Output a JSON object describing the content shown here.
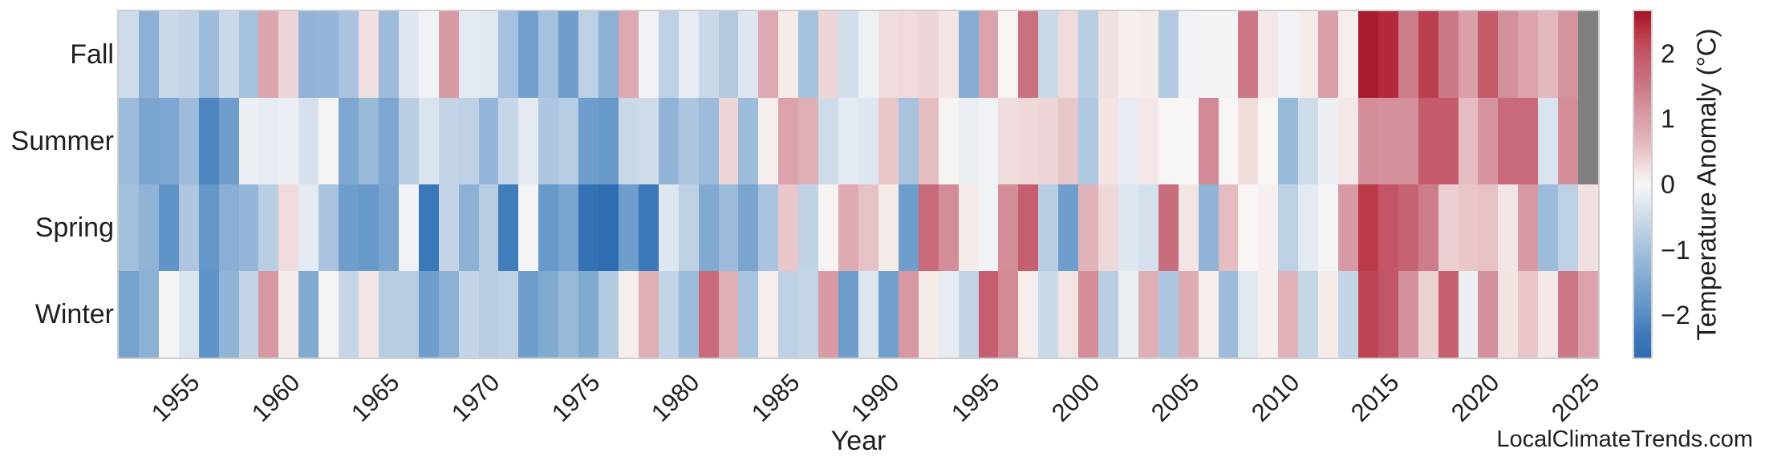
{
  "site_credit": "LocalClimateTrends.com",
  "colors": {
    "background": "#ffffff",
    "frame": "#cfcfcf",
    "text": "#1f1f1f",
    "missing_cell": "#808080"
  },
  "chart_data": {
    "type": "heatmap",
    "title": "",
    "xlabel": "Year",
    "year_start": 1952,
    "year_end": 2025,
    "xticks": [
      1955,
      1960,
      1965,
      1970,
      1975,
      1980,
      1985,
      1990,
      1995,
      2000,
      2005,
      2010,
      2015,
      2020,
      2025
    ],
    "row_order_top_to_bottom": [
      "Fall",
      "Summer",
      "Spring",
      "Winter"
    ],
    "legend_position": "right",
    "grid": false,
    "colorbar": {
      "label": "Temperature Anomaly (°C)",
      "ticks": [
        2,
        1,
        0,
        -1,
        -2
      ],
      "vmin": -2.65,
      "vmax": 2.65
    },
    "colormap_stops": [
      [
        -2.65,
        "#2e6db1"
      ],
      [
        -2.2,
        "#427dbb"
      ],
      [
        -1.9,
        "#6094c8"
      ],
      [
        -1.5,
        "#7da7d0"
      ],
      [
        -1.1,
        "#9dbbda"
      ],
      [
        -0.7,
        "#bed1e4"
      ],
      [
        -0.35,
        "#dae4ee"
      ],
      [
        -0.1,
        "#f0f2f5"
      ],
      [
        0.0,
        "#f7f6f5"
      ],
      [
        0.12,
        "#f6eeec"
      ],
      [
        0.35,
        "#eed5d7"
      ],
      [
        0.7,
        "#e0b2b9"
      ],
      [
        1.0,
        "#da9ea9"
      ],
      [
        1.25,
        "#d28d99"
      ],
      [
        1.6,
        "#c9707f"
      ],
      [
        1.95,
        "#c45b6b"
      ],
      [
        2.3,
        "#bb3a4a"
      ],
      [
        2.65,
        "#a41328"
      ]
    ],
    "series": [
      {
        "name": "Fall",
        "values": [
          -0.5,
          -1.3,
          -0.55,
          -0.65,
          -1.1,
          -0.55,
          -1.0,
          0.9,
          0.35,
          -1.25,
          -1.2,
          -0.95,
          0.25,
          -1.1,
          -0.3,
          -0.1,
          1.05,
          -0.25,
          -0.28,
          -1.0,
          -1.65,
          -1.0,
          -1.7,
          -0.7,
          -1.3,
          0.85,
          -0.1,
          -0.7,
          -0.2,
          -0.55,
          -0.85,
          -0.3,
          0.85,
          0.15,
          -1.0,
          0.35,
          -0.45,
          -0.12,
          0.28,
          0.3,
          0.35,
          0.2,
          -1.4,
          0.95,
          0.03,
          1.6,
          -0.55,
          0.3,
          -0.78,
          0.25,
          0.1,
          0.15,
          -0.85,
          -0.1,
          -0.08,
          -0.08,
          1.5,
          0.18,
          -0.1,
          0.15,
          1.0,
          0.12,
          2.6,
          2.45,
          1.45,
          2.25,
          1.5,
          1.0,
          1.95,
          1.2,
          0.9,
          0.65,
          1.15,
          null
        ]
      },
      {
        "name": "Summer",
        "values": [
          -1.1,
          -1.55,
          -1.5,
          -1.1,
          -2.1,
          -1.7,
          -0.15,
          -0.2,
          -0.15,
          -0.4,
          -0.05,
          -1.5,
          -1.15,
          -1.5,
          -0.75,
          -0.35,
          -0.65,
          -0.7,
          -1.2,
          -0.6,
          -0.25,
          -0.9,
          -0.8,
          -1.7,
          -1.8,
          -0.55,
          -0.5,
          -1.25,
          -0.9,
          -1.1,
          0.35,
          -1.1,
          0.1,
          0.95,
          0.75,
          -0.5,
          -0.25,
          -0.3,
          0.5,
          -0.95,
          0.6,
          0.05,
          -0.18,
          -0.1,
          0.28,
          0.32,
          0.35,
          0.5,
          -0.88,
          0.22,
          -0.2,
          0.18,
          0.0,
          0.0,
          1.3,
          0.0,
          0.28,
          0.0,
          -1.15,
          -0.5,
          -0.15,
          0.18,
          1.25,
          1.2,
          1.2,
          1.95,
          1.95,
          0.6,
          1.15,
          1.7,
          1.7,
          -0.35,
          1.25,
          null
        ]
      },
      {
        "name": "Spring",
        "values": [
          -1.05,
          -1.25,
          -1.9,
          -0.9,
          -1.85,
          -1.35,
          -1.2,
          -0.75,
          0.3,
          -0.25,
          -0.95,
          -1.7,
          -1.8,
          -1.55,
          -0.1,
          -2.35,
          -0.65,
          -1.3,
          -0.8,
          -2.2,
          -0.05,
          -1.8,
          -1.55,
          -2.5,
          -2.65,
          -1.7,
          -2.35,
          -0.3,
          -0.7,
          -1.45,
          -1.1,
          -1.55,
          -0.95,
          0.5,
          -0.68,
          0.05,
          0.8,
          0.55,
          0.15,
          -1.7,
          1.7,
          1.25,
          0.15,
          -0.1,
          1.25,
          1.9,
          -0.75,
          -1.7,
          0.68,
          0.32,
          -0.3,
          -0.42,
          1.65,
          0.2,
          -1.25,
          0.6,
          0.0,
          0.1,
          -0.7,
          -0.25,
          -0.05,
          1.05,
          2.3,
          2.0,
          1.8,
          1.45,
          0.42,
          0.5,
          0.55,
          0.2,
          1.1,
          -1.1,
          -0.7,
          0.25
        ]
      },
      {
        "name": "Winter",
        "values": [
          -1.6,
          -1.3,
          -0.05,
          -0.35,
          -1.9,
          -1.25,
          -0.65,
          1.1,
          0.15,
          -1.45,
          -0.05,
          -0.6,
          0.2,
          -0.8,
          -0.8,
          -1.7,
          -1.3,
          -0.65,
          -0.75,
          -0.7,
          -1.7,
          -1.45,
          -1.15,
          -1.45,
          -0.85,
          0.12,
          0.75,
          -0.65,
          -1.1,
          1.7,
          0.75,
          -0.95,
          0.12,
          -0.7,
          -0.62,
          1.05,
          -1.7,
          -0.3,
          -1.65,
          1.1,
          0.15,
          -0.2,
          -0.65,
          1.9,
          1.3,
          0.12,
          -0.55,
          0.2,
          1.25,
          -0.75,
          -0.15,
          0.75,
          -0.9,
          0.8,
          0.1,
          -1.1,
          -0.28,
          0.1,
          0.72,
          -0.62,
          0.15,
          -0.65,
          2.2,
          2.0,
          1.2,
          0.38,
          1.85,
          -0.15,
          1.2,
          0.22,
          0.5,
          0.18,
          1.5,
          0.95
        ]
      }
    ]
  }
}
